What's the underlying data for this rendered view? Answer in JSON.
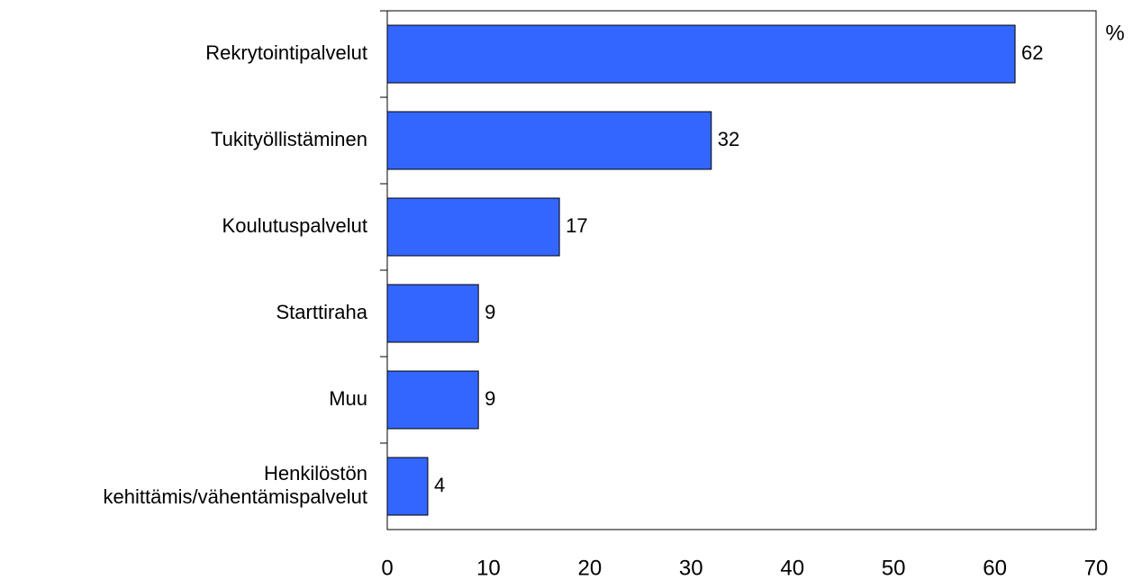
{
  "chart_data": {
    "type": "bar",
    "orientation": "horizontal",
    "unit_label": "%",
    "categories": [
      "Rekrytointipalvelut",
      "Tukityöllistäminen",
      "Koulutuspalvelut",
      "Starttiraha",
      "Muu",
      [
        "Henkilöstön",
        "kehittämis/vähentämispalvelut"
      ]
    ],
    "values": [
      62,
      32,
      17,
      9,
      9,
      4
    ],
    "color": "#3366ff",
    "xlim": [
      0,
      70
    ],
    "xticks": [
      0,
      10,
      20,
      30,
      40,
      50,
      60,
      70
    ],
    "grid": false
  }
}
